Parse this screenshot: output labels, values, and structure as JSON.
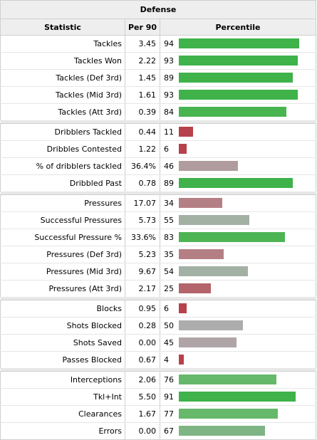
{
  "title": "Defense",
  "headers": {
    "statistic": "Statistic",
    "per90": "Per 90",
    "percentile": "Percentile"
  },
  "groups": [
    [
      {
        "stat": "Tackles",
        "per90": "3.45",
        "pct": 94,
        "color": "#3fb24a"
      },
      {
        "stat": "Tackles Won",
        "per90": "2.22",
        "pct": 93,
        "color": "#3fb24a"
      },
      {
        "stat": "Tackles (Def 3rd)",
        "per90": "1.45",
        "pct": 89,
        "color": "#3fb24a"
      },
      {
        "stat": "Tackles (Mid 3rd)",
        "per90": "1.61",
        "pct": 93,
        "color": "#3fb24a"
      },
      {
        "stat": "Tackles (Att 3rd)",
        "per90": "0.39",
        "pct": 84,
        "color": "#48b450"
      }
    ],
    [
      {
        "stat": "Dribblers Tackled",
        "per90": "0.44",
        "pct": 11,
        "color": "#b8414b"
      },
      {
        "stat": "Dribbles Contested",
        "per90": "1.22",
        "pct": 6,
        "color": "#b8414b"
      },
      {
        "stat": "% of dribblers tackled",
        "per90": "36.4%",
        "pct": 46,
        "color": "#b09c9e"
      },
      {
        "stat": "Dribbled Past",
        "per90": "0.78",
        "pct": 89,
        "color": "#3fb24a"
      }
    ],
    [
      {
        "stat": "Pressures",
        "per90": "17.07",
        "pct": 34,
        "color": "#b47f84"
      },
      {
        "stat": "Successful Pressures",
        "per90": "5.73",
        "pct": 55,
        "color": "#a3b0a4"
      },
      {
        "stat": "Successful Pressure %",
        "per90": "33.6%",
        "pct": 83,
        "color": "#4db454"
      },
      {
        "stat": "Pressures (Def 3rd)",
        "per90": "5.23",
        "pct": 35,
        "color": "#b47f84"
      },
      {
        "stat": "Pressures (Mid 3rd)",
        "per90": "9.67",
        "pct": 54,
        "color": "#a3b0a4"
      },
      {
        "stat": "Pressures (Att 3rd)",
        "per90": "2.17",
        "pct": 25,
        "color": "#b4646b"
      }
    ],
    [
      {
        "stat": "Blocks",
        "per90": "0.95",
        "pct": 6,
        "color": "#b8414b"
      },
      {
        "stat": "Shots Blocked",
        "per90": "0.28",
        "pct": 50,
        "color": "#adadad"
      },
      {
        "stat": "Shots Saved",
        "per90": "0.00",
        "pct": 45,
        "color": "#afa5a6"
      },
      {
        "stat": "Passes Blocked",
        "per90": "0.67",
        "pct": 4,
        "color": "#b8414b"
      }
    ],
    [
      {
        "stat": "Interceptions",
        "per90": "2.06",
        "pct": 76,
        "color": "#66b86b"
      },
      {
        "stat": "Tkl+Int",
        "per90": "5.50",
        "pct": 91,
        "color": "#3fb24a"
      },
      {
        "stat": "Clearances",
        "per90": "1.67",
        "pct": 77,
        "color": "#66b86b"
      },
      {
        "stat": "Errors",
        "per90": "0.00",
        "pct": 67,
        "color": "#7fb484"
      }
    ]
  ]
}
